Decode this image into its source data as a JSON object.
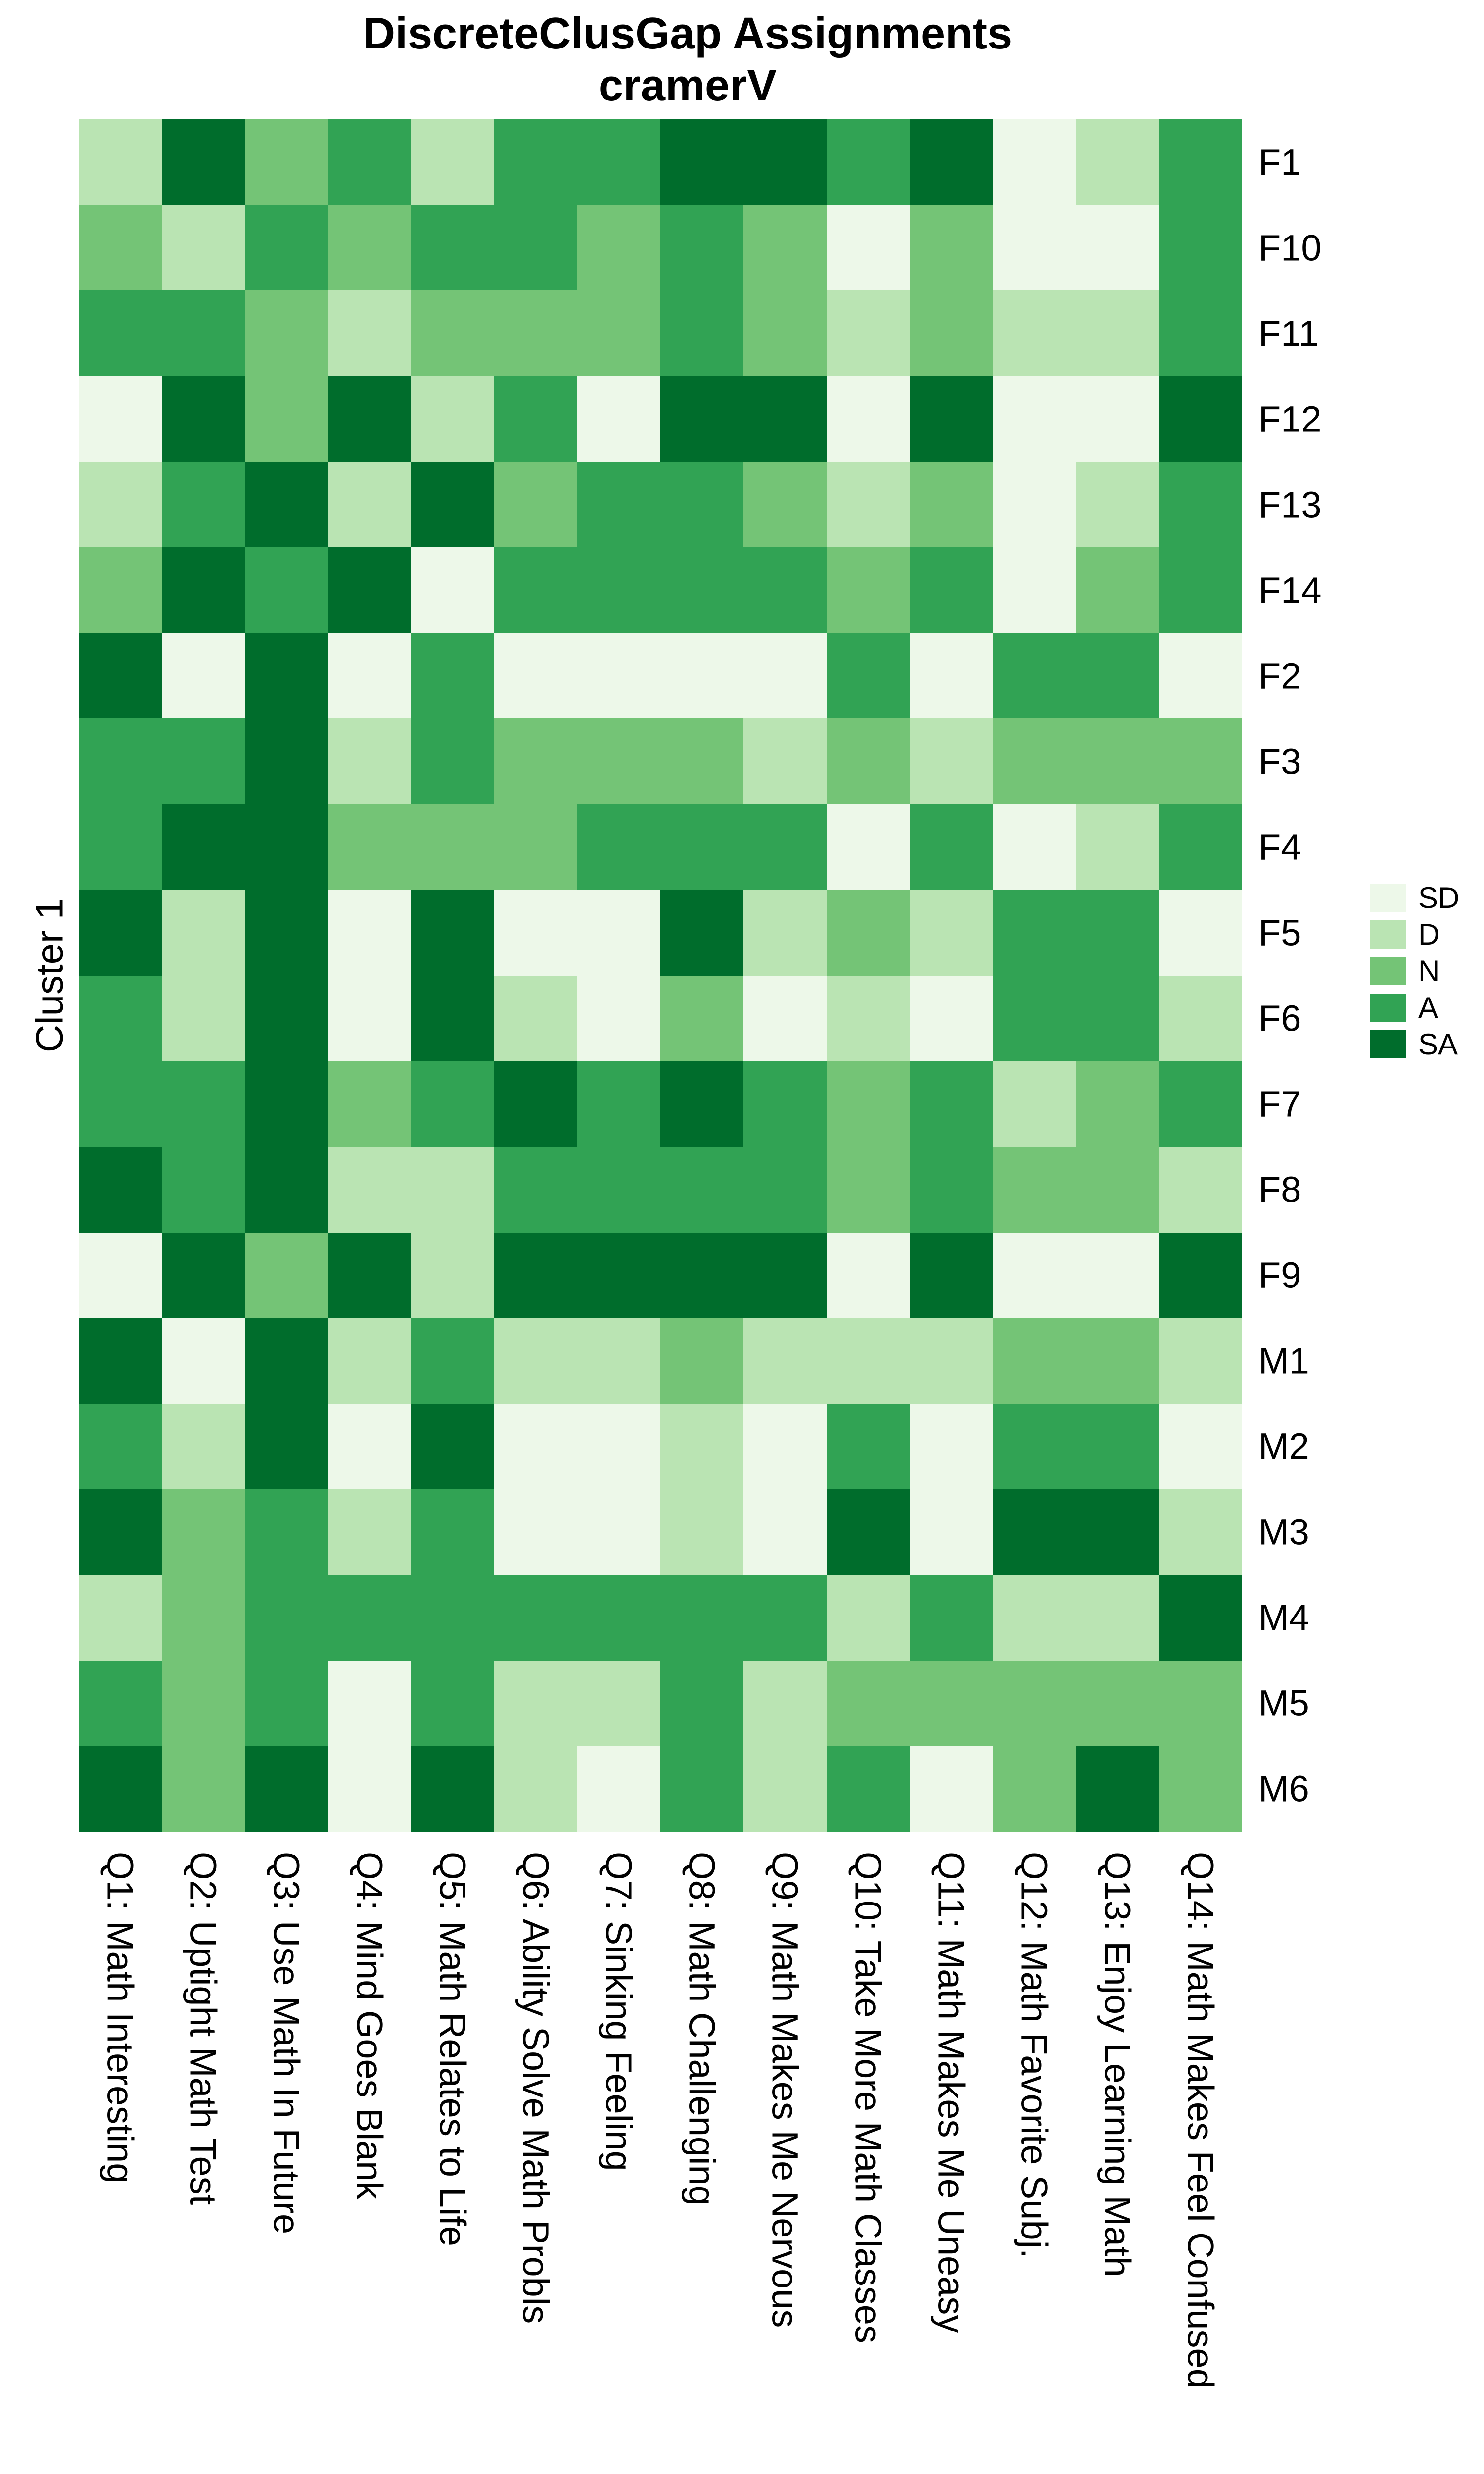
{
  "title": {
    "line1": "DiscreteClusGap Assignments",
    "line2": "cramerV"
  },
  "y_axis_label": "Cluster 1",
  "legend": {
    "items": [
      {
        "label": "SD",
        "color": "#EDF8E9"
      },
      {
        "label": "D",
        "color": "#BAE4B3"
      },
      {
        "label": "N",
        "color": "#74C476"
      },
      {
        "label": "A",
        "color": "#31A354"
      },
      {
        "label": "SA",
        "color": "#006D2C"
      }
    ]
  },
  "chart_data": {
    "type": "heatmap",
    "title": "DiscreteClusGap Assignments cramerV",
    "x_labels": [
      "Q1: Math Interesting",
      "Q2: Uptight Math Test",
      "Q3: Use Math In Future",
      "Q4: Mind Goes Blank",
      "Q5: Math Relates to Life",
      "Q6: Ability Solve Math Probls",
      "Q7: Sinking Feeling",
      "Q8: Math Challenging",
      "Q9: Math Makes Me Nervous",
      "Q10: Take More Math Classes",
      "Q11: Math Makes Me Uneasy",
      "Q12: Math Favorite Subj.",
      "Q13: Enjoy Learning Math",
      "Q14: Math Makes Feel Confused"
    ],
    "y_labels": [
      "F1",
      "F10",
      "F11",
      "F12",
      "F13",
      "F14",
      "F2",
      "F3",
      "F4",
      "F5",
      "F6",
      "F7",
      "F8",
      "F9",
      "M1",
      "M2",
      "M3",
      "M4",
      "M5",
      "M6"
    ],
    "value_scale": [
      "SD",
      "D",
      "N",
      "A",
      "SA"
    ],
    "palette": {
      "SD": "#EDF8E9",
      "D": "#BAE4B3",
      "N": "#74C476",
      "A": "#31A354",
      "SA": "#006D2C"
    },
    "legend_position": "right",
    "grid": false,
    "matrix": [
      [
        "D",
        "SA",
        "N",
        "A",
        "D",
        "A",
        "A",
        "SA",
        "SA",
        "A",
        "SA",
        "SD",
        "D",
        "A"
      ],
      [
        "N",
        "D",
        "A",
        "N",
        "A",
        "A",
        "N",
        "A",
        "N",
        "SD",
        "N",
        "SD",
        "SD",
        "A"
      ],
      [
        "A",
        "A",
        "N",
        "D",
        "N",
        "N",
        "N",
        "A",
        "N",
        "D",
        "N",
        "D",
        "D",
        "A"
      ],
      [
        "SD",
        "SA",
        "N",
        "SA",
        "D",
        "A",
        "SD",
        "SA",
        "SA",
        "SD",
        "SA",
        "SD",
        "SD",
        "SA"
      ],
      [
        "D",
        "A",
        "SA",
        "D",
        "SA",
        "N",
        "A",
        "A",
        "N",
        "D",
        "N",
        "SD",
        "D",
        "A"
      ],
      [
        "N",
        "SA",
        "A",
        "SA",
        "SD",
        "A",
        "A",
        "A",
        "A",
        "N",
        "A",
        "SD",
        "N",
        "A"
      ],
      [
        "SA",
        "SD",
        "SA",
        "SD",
        "A",
        "SD",
        "SD",
        "SD",
        "SD",
        "A",
        "SD",
        "A",
        "A",
        "SD"
      ],
      [
        "A",
        "A",
        "SA",
        "D",
        "A",
        "N",
        "N",
        "N",
        "D",
        "N",
        "D",
        "N",
        "N",
        "N"
      ],
      [
        "A",
        "SA",
        "SA",
        "N",
        "N",
        "N",
        "A",
        "A",
        "A",
        "SD",
        "A",
        "SD",
        "D",
        "A"
      ],
      [
        "SA",
        "D",
        "SA",
        "SD",
        "SA",
        "SD",
        "SD",
        "SA",
        "D",
        "N",
        "D",
        "A",
        "A",
        "SD"
      ],
      [
        "A",
        "D",
        "SA",
        "SD",
        "SA",
        "D",
        "SD",
        "N",
        "SD",
        "D",
        "SD",
        "A",
        "A",
        "D"
      ],
      [
        "A",
        "A",
        "SA",
        "N",
        "A",
        "SA",
        "A",
        "SA",
        "A",
        "N",
        "A",
        "D",
        "N",
        "A"
      ],
      [
        "SA",
        "A",
        "SA",
        "D",
        "D",
        "A",
        "A",
        "A",
        "A",
        "N",
        "A",
        "N",
        "N",
        "D"
      ],
      [
        "SD",
        "SA",
        "N",
        "SA",
        "D",
        "SA",
        "SA",
        "SA",
        "SA",
        "SD",
        "SA",
        "SD",
        "SD",
        "SA"
      ],
      [
        "SA",
        "SD",
        "SA",
        "D",
        "A",
        "D",
        "D",
        "N",
        "D",
        "D",
        "D",
        "N",
        "N",
        "D"
      ],
      [
        "A",
        "D",
        "SA",
        "SD",
        "SA",
        "SD",
        "SD",
        "D",
        "SD",
        "A",
        "SD",
        "A",
        "A",
        "SD"
      ],
      [
        "SA",
        "N",
        "A",
        "D",
        "A",
        "SD",
        "SD",
        "D",
        "SD",
        "SA",
        "SD",
        "SA",
        "SA",
        "D"
      ],
      [
        "D",
        "N",
        "A",
        "A",
        "A",
        "A",
        "A",
        "A",
        "A",
        "D",
        "A",
        "D",
        "D",
        "SA"
      ],
      [
        "A",
        "N",
        "A",
        "SD",
        "A",
        "D",
        "D",
        "A",
        "D",
        "N",
        "N",
        "N",
        "N",
        "N"
      ],
      [
        "SA",
        "N",
        "SA",
        "SD",
        "SA",
        "D",
        "SD",
        "A",
        "D",
        "A",
        "SD",
        "N",
        "SA",
        "N"
      ]
    ]
  }
}
